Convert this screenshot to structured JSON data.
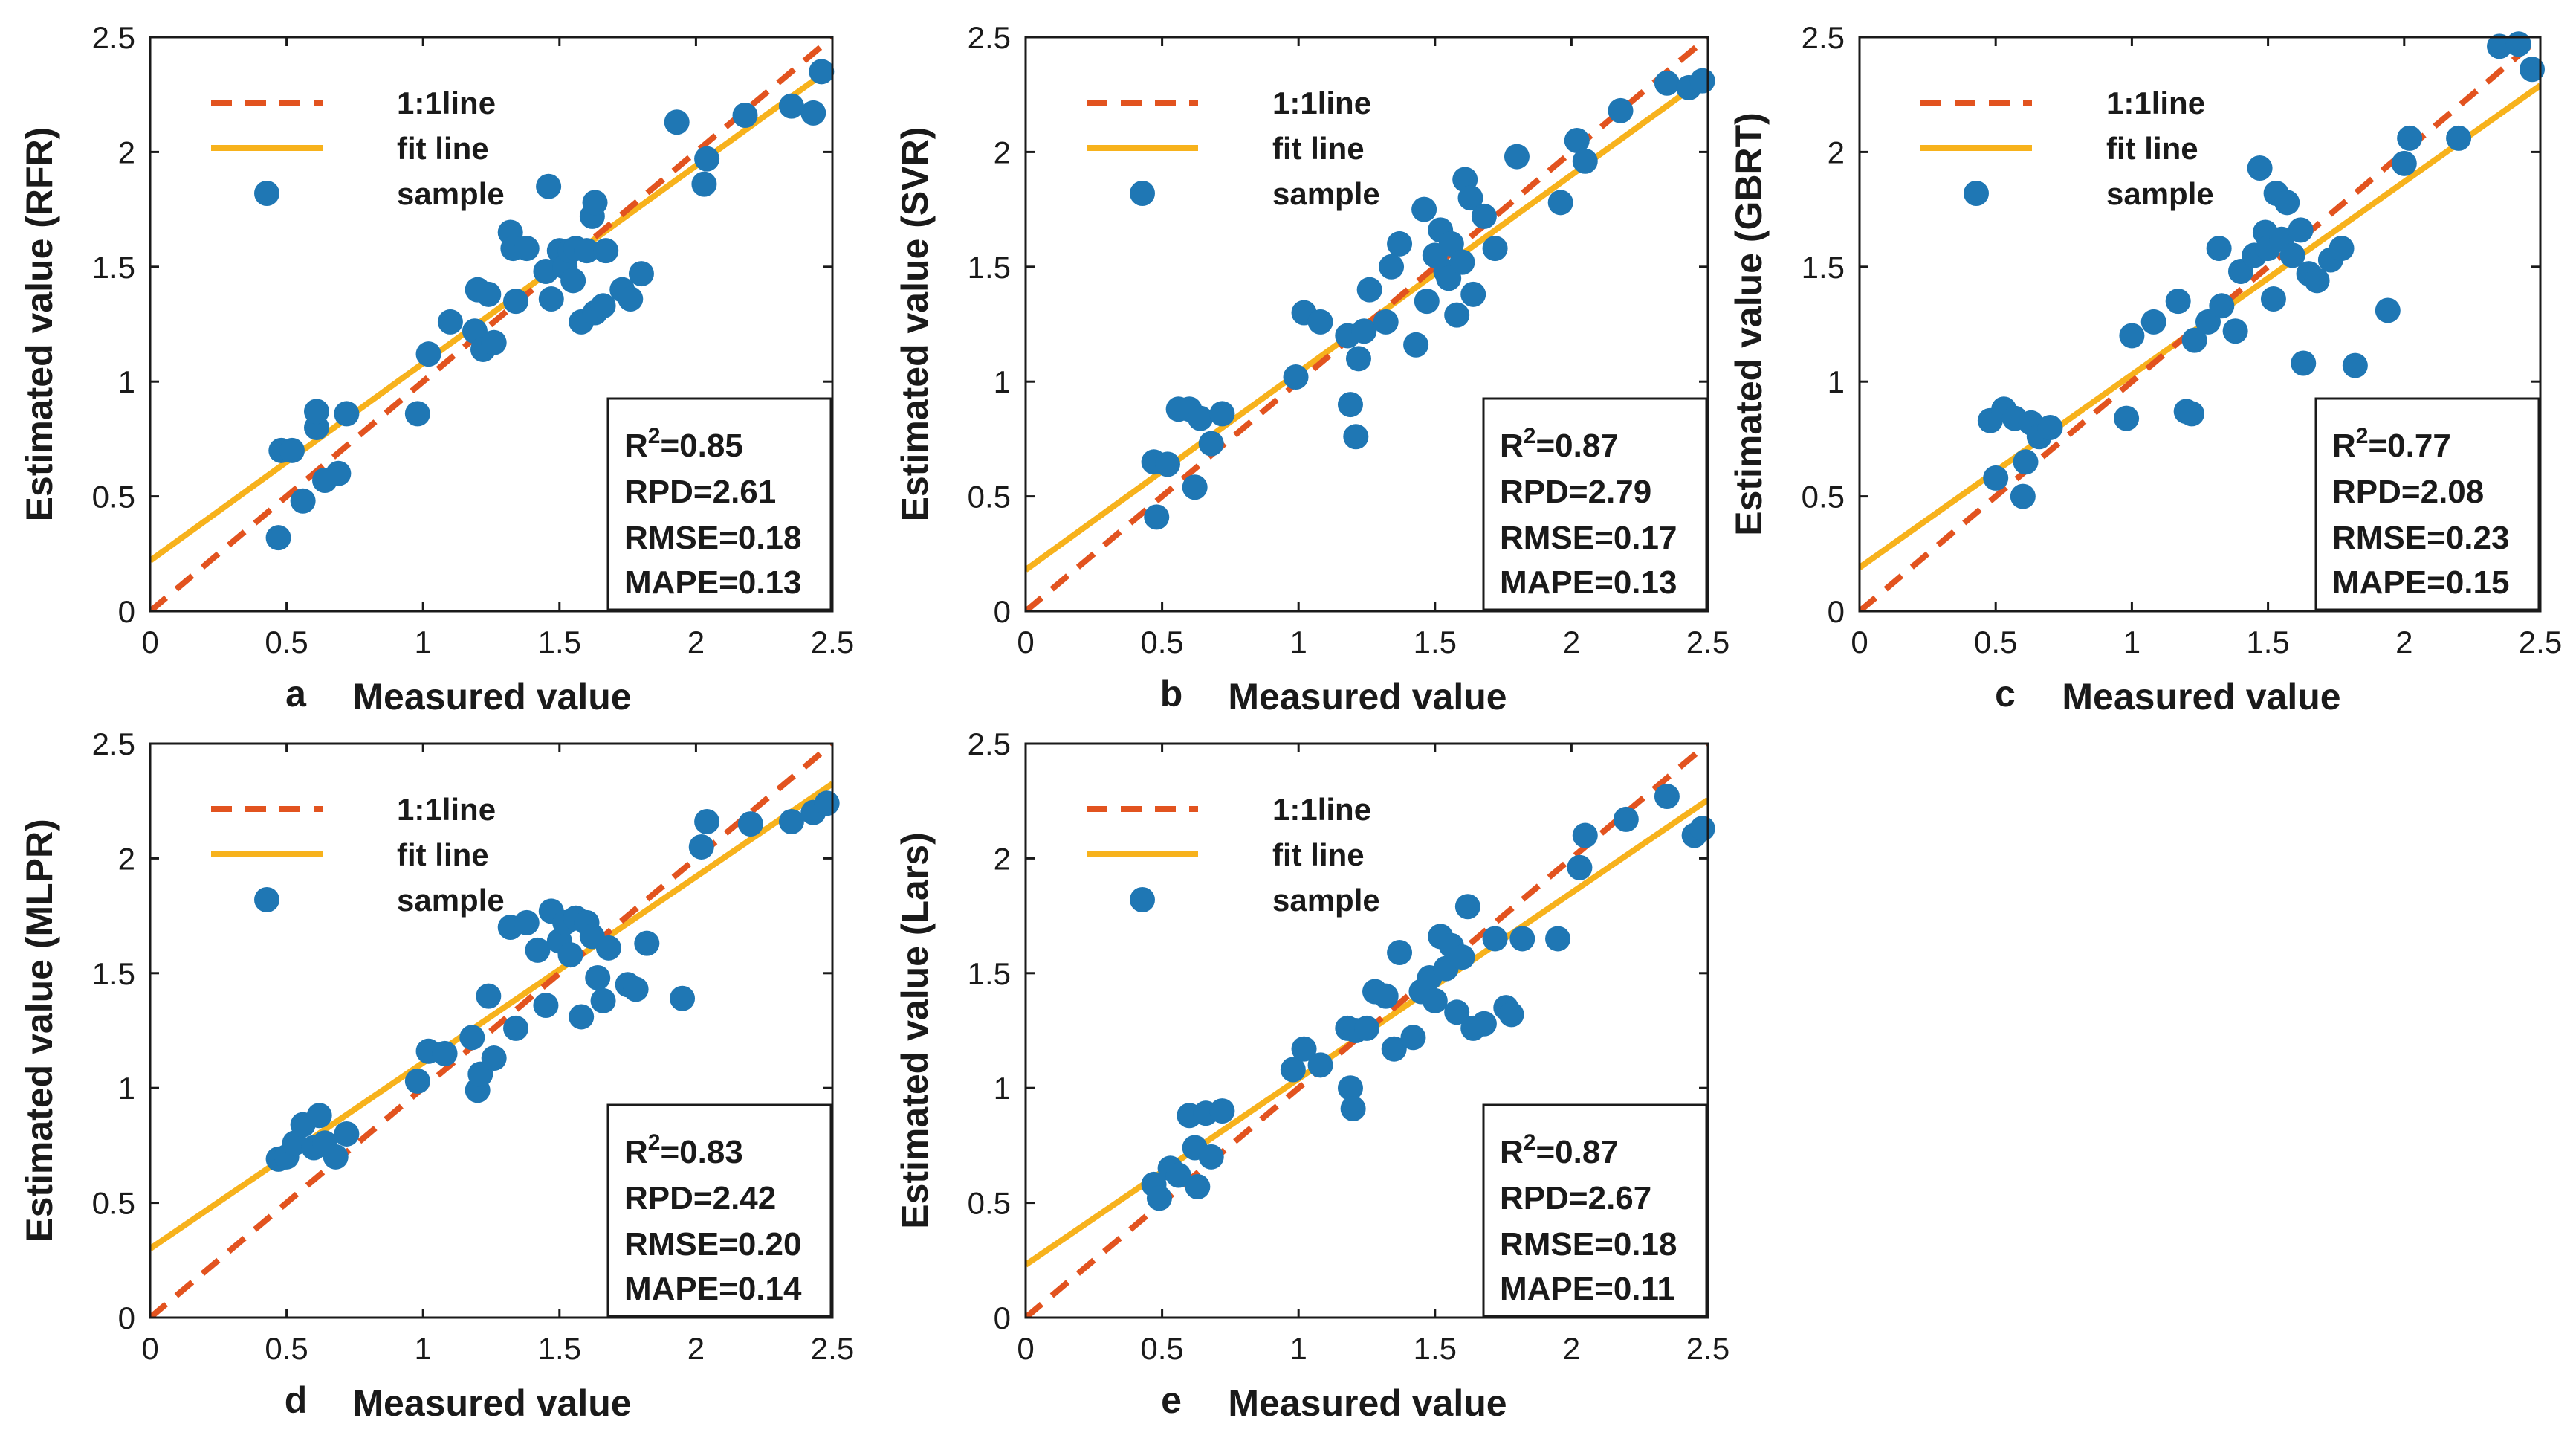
{
  "colors": {
    "identity_line": "#e2531f",
    "fit_line": "#f7b21c",
    "sample": "#1f77b4",
    "axis": "#1a1a1a"
  },
  "legend": {
    "identity": "1:1line",
    "fit": "fit line",
    "sample": "sample"
  },
  "chart_data": [
    {
      "id": "a",
      "panel_letter": "a",
      "type": "scatter",
      "xlabel": "Measured value",
      "ylabel": "Estimated value (RFR)",
      "xlim": [
        0,
        2.5
      ],
      "ylim": [
        0,
        2.5
      ],
      "xticks": [
        "0",
        "0.5",
        "1",
        "1.5",
        "2",
        "2.5"
      ],
      "yticks": [
        "0",
        "0.5",
        "1",
        "1.5",
        "2",
        "2.5"
      ],
      "fit": {
        "intercept": 0.22,
        "slope": 0.86
      },
      "stats": {
        "r2_label": "R",
        "r2_sup": "2",
        "r2_value": "=0.85",
        "rpd": "RPD=2.61",
        "rmse": "RMSE=0.18",
        "mape": "MAPE=0.13"
      },
      "points": [
        [
          0.47,
          0.32
        ],
        [
          0.48,
          0.7
        ],
        [
          0.52,
          0.7
        ],
        [
          0.56,
          0.48
        ],
        [
          0.61,
          0.8
        ],
        [
          0.61,
          0.87
        ],
        [
          0.64,
          0.57
        ],
        [
          0.69,
          0.6
        ],
        [
          0.72,
          0.86
        ],
        [
          0.98,
          0.86
        ],
        [
          1.02,
          1.12
        ],
        [
          1.1,
          1.26
        ],
        [
          1.19,
          1.22
        ],
        [
          1.2,
          1.4
        ],
        [
          1.22,
          1.14
        ],
        [
          1.24,
          1.38
        ],
        [
          1.26,
          1.17
        ],
        [
          1.32,
          1.65
        ],
        [
          1.33,
          1.58
        ],
        [
          1.34,
          1.35
        ],
        [
          1.38,
          1.58
        ],
        [
          1.45,
          1.48
        ],
        [
          1.46,
          1.85
        ],
        [
          1.47,
          1.36
        ],
        [
          1.5,
          1.57
        ],
        [
          1.52,
          1.5
        ],
        [
          1.54,
          1.57
        ],
        [
          1.55,
          1.44
        ],
        [
          1.56,
          1.58
        ],
        [
          1.58,
          1.26
        ],
        [
          1.6,
          1.57
        ],
        [
          1.62,
          1.72
        ],
        [
          1.63,
          1.78
        ],
        [
          1.63,
          1.3
        ],
        [
          1.66,
          1.33
        ],
        [
          1.67,
          1.57
        ],
        [
          1.73,
          1.4
        ],
        [
          1.76,
          1.36
        ],
        [
          1.8,
          1.47
        ],
        [
          1.93,
          2.13
        ],
        [
          2.03,
          1.86
        ],
        [
          2.04,
          1.97
        ],
        [
          2.18,
          2.16
        ],
        [
          2.35,
          2.2
        ],
        [
          2.43,
          2.17
        ],
        [
          2.46,
          2.35
        ]
      ]
    },
    {
      "id": "b",
      "panel_letter": "b",
      "type": "scatter",
      "xlabel": "Measured value",
      "ylabel": "Estimated value (SVR)",
      "xlim": [
        0,
        2.5
      ],
      "ylim": [
        0,
        2.5
      ],
      "xticks": [
        "0",
        "0.5",
        "1",
        "1.5",
        "2",
        "2.5"
      ],
      "yticks": [
        "0",
        "0.5",
        "1",
        "1.5",
        "2",
        "2.5"
      ],
      "fit": {
        "intercept": 0.18,
        "slope": 0.86
      },
      "stats": {
        "r2_label": "R",
        "r2_sup": "2",
        "r2_value": "=0.87",
        "rpd": "RPD=2.79",
        "rmse": "RMSE=0.17",
        "mape": "MAPE=0.13"
      },
      "points": [
        [
          0.47,
          0.65
        ],
        [
          0.48,
          0.41
        ],
        [
          0.52,
          0.64
        ],
        [
          0.56,
          0.88
        ],
        [
          0.6,
          0.88
        ],
        [
          0.62,
          0.54
        ],
        [
          0.64,
          0.84
        ],
        [
          0.68,
          0.73
        ],
        [
          0.72,
          0.86
        ],
        [
          0.99,
          1.02
        ],
        [
          1.02,
          1.3
        ],
        [
          1.08,
          1.26
        ],
        [
          1.18,
          1.2
        ],
        [
          1.19,
          0.9
        ],
        [
          1.21,
          0.76
        ],
        [
          1.22,
          1.1
        ],
        [
          1.24,
          1.22
        ],
        [
          1.26,
          1.4
        ],
        [
          1.32,
          1.26
        ],
        [
          1.34,
          1.5
        ],
        [
          1.37,
          1.6
        ],
        [
          1.43,
          1.16
        ],
        [
          1.46,
          1.75
        ],
        [
          1.47,
          1.35
        ],
        [
          1.5,
          1.55
        ],
        [
          1.52,
          1.66
        ],
        [
          1.54,
          1.48
        ],
        [
          1.55,
          1.45
        ],
        [
          1.56,
          1.6
        ],
        [
          1.58,
          1.29
        ],
        [
          1.6,
          1.52
        ],
        [
          1.61,
          1.88
        ],
        [
          1.63,
          1.8
        ],
        [
          1.64,
          1.38
        ],
        [
          1.68,
          1.72
        ],
        [
          1.72,
          1.58
        ],
        [
          1.8,
          1.98
        ],
        [
          1.96,
          1.78
        ],
        [
          2.02,
          2.05
        ],
        [
          2.05,
          1.96
        ],
        [
          2.18,
          2.18
        ],
        [
          2.35,
          2.3
        ],
        [
          2.43,
          2.28
        ],
        [
          2.48,
          2.31
        ]
      ]
    },
    {
      "id": "c",
      "panel_letter": "c",
      "type": "scatter",
      "xlabel": "Measured value",
      "ylabel": "Estimated value (GBRT)",
      "xlim": [
        0,
        2.5
      ],
      "ylim": [
        0,
        2.5
      ],
      "xticks": [
        "0",
        "0.5",
        "1",
        "1.5",
        "2",
        "2.5"
      ],
      "yticks": [
        "0",
        "0.5",
        "1",
        "1.5",
        "2",
        "2.5"
      ],
      "fit": {
        "intercept": 0.19,
        "slope": 0.84
      },
      "stats": {
        "r2_label": "R",
        "r2_sup": "2",
        "r2_value": "=0.77",
        "rpd": "RPD=2.08",
        "rmse": "RMSE=0.23",
        "mape": "MAPE=0.15"
      },
      "points": [
        [
          0.48,
          0.83
        ],
        [
          0.5,
          0.58
        ],
        [
          0.53,
          0.88
        ],
        [
          0.57,
          0.84
        ],
        [
          0.6,
          0.5
        ],
        [
          0.61,
          0.65
        ],
        [
          0.63,
          0.82
        ],
        [
          0.66,
          0.76
        ],
        [
          0.7,
          0.8
        ],
        [
          0.98,
          0.84
        ],
        [
          1.0,
          1.2
        ],
        [
          1.08,
          1.26
        ],
        [
          1.17,
          1.35
        ],
        [
          1.2,
          0.87
        ],
        [
          1.22,
          0.86
        ],
        [
          1.23,
          1.18
        ],
        [
          1.28,
          1.26
        ],
        [
          1.32,
          1.58
        ],
        [
          1.33,
          1.33
        ],
        [
          1.38,
          1.22
        ],
        [
          1.4,
          1.48
        ],
        [
          1.45,
          1.55
        ],
        [
          1.47,
          1.93
        ],
        [
          1.49,
          1.65
        ],
        [
          1.5,
          1.58
        ],
        [
          1.52,
          1.36
        ],
        [
          1.53,
          1.82
        ],
        [
          1.55,
          1.62
        ],
        [
          1.57,
          1.78
        ],
        [
          1.59,
          1.55
        ],
        [
          1.62,
          1.66
        ],
        [
          1.63,
          1.08
        ],
        [
          1.65,
          1.47
        ],
        [
          1.68,
          1.44
        ],
        [
          1.73,
          1.53
        ],
        [
          1.77,
          1.58
        ],
        [
          1.82,
          1.07
        ],
        [
          1.94,
          1.31
        ],
        [
          2.0,
          1.95
        ],
        [
          2.02,
          2.06
        ],
        [
          2.2,
          2.06
        ],
        [
          2.35,
          2.46
        ],
        [
          2.42,
          2.47
        ],
        [
          2.47,
          2.36
        ]
      ]
    },
    {
      "id": "d",
      "panel_letter": "d",
      "type": "scatter",
      "xlabel": "Measured value",
      "ylabel": "Estimated value (MLPR)",
      "xlim": [
        0,
        2.5
      ],
      "ylim": [
        0,
        2.5
      ],
      "xticks": [
        "0",
        "0.5",
        "1",
        "1.5",
        "2",
        "2.5"
      ],
      "yticks": [
        "0",
        "0.5",
        "1",
        "1.5",
        "2",
        "2.5"
      ],
      "fit": {
        "intercept": 0.3,
        "slope": 0.81
      },
      "stats": {
        "r2_label": "R",
        "r2_sup": "2",
        "r2_value": "=0.83",
        "rpd": "RPD=2.42",
        "rmse": "RMSE=0.20",
        "mape": "MAPE=0.14"
      },
      "points": [
        [
          0.47,
          0.69
        ],
        [
          0.5,
          0.7
        ],
        [
          0.53,
          0.76
        ],
        [
          0.56,
          0.84
        ],
        [
          0.6,
          0.74
        ],
        [
          0.62,
          0.88
        ],
        [
          0.64,
          0.76
        ],
        [
          0.68,
          0.7
        ],
        [
          0.72,
          0.8
        ],
        [
          0.98,
          1.03
        ],
        [
          1.02,
          1.16
        ],
        [
          1.08,
          1.15
        ],
        [
          1.18,
          1.22
        ],
        [
          1.2,
          0.99
        ],
        [
          1.21,
          1.06
        ],
        [
          1.24,
          1.4
        ],
        [
          1.26,
          1.13
        ],
        [
          1.32,
          1.7
        ],
        [
          1.34,
          1.26
        ],
        [
          1.38,
          1.72
        ],
        [
          1.42,
          1.6
        ],
        [
          1.45,
          1.36
        ],
        [
          1.47,
          1.77
        ],
        [
          1.5,
          1.64
        ],
        [
          1.52,
          1.72
        ],
        [
          1.54,
          1.58
        ],
        [
          1.56,
          1.74
        ],
        [
          1.58,
          1.31
        ],
        [
          1.6,
          1.72
        ],
        [
          1.62,
          1.66
        ],
        [
          1.64,
          1.48
        ],
        [
          1.66,
          1.38
        ],
        [
          1.68,
          1.61
        ],
        [
          1.75,
          1.45
        ],
        [
          1.78,
          1.43
        ],
        [
          1.82,
          1.63
        ],
        [
          1.95,
          1.39
        ],
        [
          2.02,
          2.05
        ],
        [
          2.04,
          2.16
        ],
        [
          2.2,
          2.15
        ],
        [
          2.35,
          2.16
        ],
        [
          2.43,
          2.2
        ],
        [
          2.48,
          2.24
        ]
      ]
    },
    {
      "id": "e",
      "panel_letter": "e",
      "type": "scatter",
      "xlabel": "Measured value",
      "ylabel": "Estimated value (Lars)",
      "xlim": [
        0,
        2.5
      ],
      "ylim": [
        0,
        2.5
      ],
      "xticks": [
        "0",
        "0.5",
        "1",
        "1.5",
        "2",
        "2.5"
      ],
      "yticks": [
        "0",
        "0.5",
        "1",
        "1.5",
        "2",
        "2.5"
      ],
      "fit": {
        "intercept": 0.23,
        "slope": 0.81
      },
      "stats": {
        "r2_label": "R",
        "r2_sup": "2",
        "r2_value": "=0.87",
        "rpd": "RPD=2.67",
        "rmse": "RMSE=0.18",
        "mape": "MAPE=0.11"
      },
      "points": [
        [
          0.47,
          0.58
        ],
        [
          0.49,
          0.52
        ],
        [
          0.53,
          0.65
        ],
        [
          0.56,
          0.62
        ],
        [
          0.6,
          0.88
        ],
        [
          0.62,
          0.74
        ],
        [
          0.63,
          0.57
        ],
        [
          0.66,
          0.89
        ],
        [
          0.68,
          0.7
        ],
        [
          0.72,
          0.9
        ],
        [
          0.98,
          1.08
        ],
        [
          1.02,
          1.17
        ],
        [
          1.08,
          1.1
        ],
        [
          1.18,
          1.26
        ],
        [
          1.19,
          1.0
        ],
        [
          1.2,
          0.91
        ],
        [
          1.21,
          1.25
        ],
        [
          1.25,
          1.26
        ],
        [
          1.28,
          1.42
        ],
        [
          1.32,
          1.4
        ],
        [
          1.35,
          1.17
        ],
        [
          1.37,
          1.59
        ],
        [
          1.42,
          1.22
        ],
        [
          1.45,
          1.42
        ],
        [
          1.48,
          1.48
        ],
        [
          1.5,
          1.38
        ],
        [
          1.52,
          1.66
        ],
        [
          1.54,
          1.52
        ],
        [
          1.56,
          1.62
        ],
        [
          1.58,
          1.33
        ],
        [
          1.6,
          1.57
        ],
        [
          1.62,
          1.79
        ],
        [
          1.64,
          1.26
        ],
        [
          1.68,
          1.28
        ],
        [
          1.72,
          1.65
        ],
        [
          1.76,
          1.35
        ],
        [
          1.78,
          1.32
        ],
        [
          1.82,
          1.65
        ],
        [
          1.95,
          1.65
        ],
        [
          2.03,
          1.96
        ],
        [
          2.05,
          2.1
        ],
        [
          2.2,
          2.17
        ],
        [
          2.35,
          2.27
        ],
        [
          2.45,
          2.1
        ],
        [
          2.48,
          2.13
        ]
      ]
    }
  ]
}
